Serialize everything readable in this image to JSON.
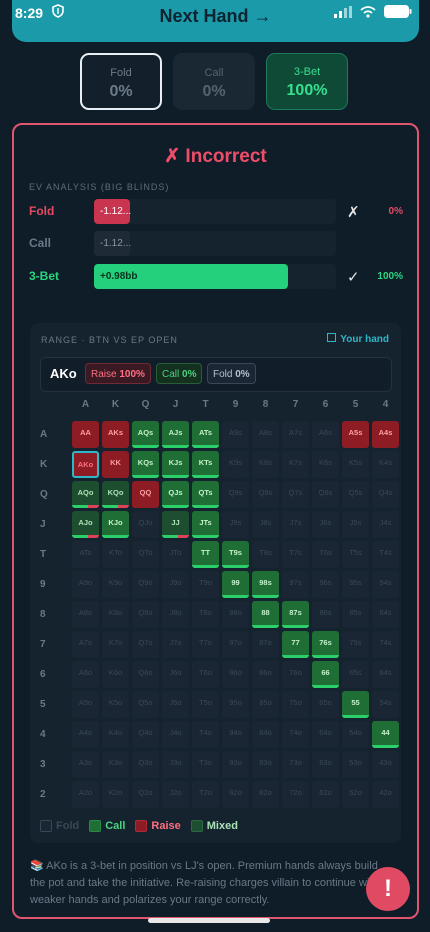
{
  "status": {
    "time": "8:29"
  },
  "header": {
    "title": "Next Hand →"
  },
  "options": [
    {
      "label": "Fold",
      "pct": "0%"
    },
    {
      "label": "Call",
      "pct": "0%"
    },
    {
      "label": "3-Bet",
      "pct": "100%"
    }
  ],
  "result": {
    "verdict": "✗ Incorrect"
  },
  "ev": {
    "heading": "EV ANALYSIS (BIG BLINDS)",
    "rows": [
      {
        "name": "Fold",
        "value": "-1.12...",
        "mark": "✗",
        "pct": "0%",
        "color": "#e44b63",
        "fill_color": "#c9354f",
        "fill": 0.15
      },
      {
        "name": "Call",
        "value": "-1.12...",
        "mark": "",
        "pct": "",
        "color": "#6b7986",
        "fill_color": "#1e2b37",
        "fill": 0.15
      },
      {
        "name": "3-Bet",
        "value": "+0.98bb",
        "mark": "✓",
        "pct": "100%",
        "color": "#2ad57f",
        "fill_color": "#24d07c",
        "fill": 0.8
      }
    ]
  },
  "range": {
    "title": "RANGE · BTN VS EP OPEN",
    "your_hand_label": "Your hand",
    "hand": "AKo",
    "pills": [
      {
        "label": "Raise",
        "value": "100%"
      },
      {
        "label": "Call",
        "value": "0%"
      },
      {
        "label": "Fold",
        "value": "0%"
      }
    ],
    "ranks": [
      "A",
      "K",
      "Q",
      "J",
      "T",
      "9",
      "8",
      "7",
      "6",
      "5",
      "4"
    ],
    "row_ranks": [
      "A",
      "K",
      "Q",
      "J",
      "T",
      "9",
      "8",
      "7",
      "6",
      "5",
      "4",
      "3",
      "2"
    ],
    "cells": [
      [
        "AA",
        "r"
      ],
      [
        "AKs",
        "r"
      ],
      [
        "AQs",
        "c"
      ],
      [
        "AJs",
        "c"
      ],
      [
        "ATs",
        "c"
      ],
      [
        "A9s",
        "f"
      ],
      [
        "A8s",
        "f"
      ],
      [
        "A7s",
        "f"
      ],
      [
        "A6s",
        "f"
      ],
      [
        "A5s",
        "r"
      ],
      [
        "A4s",
        "r"
      ],
      [
        "AKo",
        "sel"
      ],
      [
        "KK",
        "r"
      ],
      [
        "KQs",
        "c"
      ],
      [
        "KJs",
        "c"
      ],
      [
        "KTs",
        "c"
      ],
      [
        "K9s",
        "f"
      ],
      [
        "K8s",
        "f"
      ],
      [
        "K7s",
        "f"
      ],
      [
        "K6s",
        "f"
      ],
      [
        "K5s",
        "f"
      ],
      [
        "K4s",
        "f"
      ],
      [
        "AQo",
        "m"
      ],
      [
        "KQo",
        "m"
      ],
      [
        "QQ",
        "r"
      ],
      [
        "QJs",
        "c"
      ],
      [
        "QTs",
        "c"
      ],
      [
        "Q9s",
        "f"
      ],
      [
        "Q8s",
        "f"
      ],
      [
        "Q7s",
        "f"
      ],
      [
        "Q6s",
        "f"
      ],
      [
        "Q5s",
        "f"
      ],
      [
        "Q4s",
        "f"
      ],
      [
        "AJo",
        "m"
      ],
      [
        "KJo",
        "c"
      ],
      [
        "QJo",
        "f"
      ],
      [
        "JJ",
        "m"
      ],
      [
        "JTs",
        "c"
      ],
      [
        "J9s",
        "f"
      ],
      [
        "J8s",
        "f"
      ],
      [
        "J7s",
        "f"
      ],
      [
        "J6s",
        "f"
      ],
      [
        "J5s",
        "f"
      ],
      [
        "J4s",
        "f"
      ],
      [
        "ATo",
        "f"
      ],
      [
        "KTo",
        "f"
      ],
      [
        "QTo",
        "f"
      ],
      [
        "JTo",
        "f"
      ],
      [
        "TT",
        "c"
      ],
      [
        "T9s",
        "c"
      ],
      [
        "T8s",
        "f"
      ],
      [
        "T7s",
        "f"
      ],
      [
        "T6s",
        "f"
      ],
      [
        "T5s",
        "f"
      ],
      [
        "T4s",
        "f"
      ],
      [
        "A9o",
        "f"
      ],
      [
        "K9o",
        "f"
      ],
      [
        "Q9o",
        "f"
      ],
      [
        "J9o",
        "f"
      ],
      [
        "T9o",
        "f"
      ],
      [
        "99",
        "c"
      ],
      [
        "98s",
        "c"
      ],
      [
        "97s",
        "f"
      ],
      [
        "96s",
        "f"
      ],
      [
        "95s",
        "f"
      ],
      [
        "94s",
        "f"
      ],
      [
        "A8o",
        "f"
      ],
      [
        "K8o",
        "f"
      ],
      [
        "Q8o",
        "f"
      ],
      [
        "J8o",
        "f"
      ],
      [
        "T8o",
        "f"
      ],
      [
        "98o",
        "f"
      ],
      [
        "88",
        "c"
      ],
      [
        "87s",
        "c"
      ],
      [
        "86s",
        "f"
      ],
      [
        "85s",
        "f"
      ],
      [
        "84s",
        "f"
      ],
      [
        "A7o",
        "f"
      ],
      [
        "K7o",
        "f"
      ],
      [
        "Q7o",
        "f"
      ],
      [
        "J7o",
        "f"
      ],
      [
        "T7o",
        "f"
      ],
      [
        "97o",
        "f"
      ],
      [
        "87o",
        "f"
      ],
      [
        "77",
        "c"
      ],
      [
        "76s",
        "c"
      ],
      [
        "75s",
        "f"
      ],
      [
        "74s",
        "f"
      ],
      [
        "A6o",
        "f"
      ],
      [
        "K6o",
        "f"
      ],
      [
        "Q6o",
        "f"
      ],
      [
        "J6o",
        "f"
      ],
      [
        "T6o",
        "f"
      ],
      [
        "96o",
        "f"
      ],
      [
        "86o",
        "f"
      ],
      [
        "76o",
        "f"
      ],
      [
        "66",
        "c"
      ],
      [
        "65s",
        "f"
      ],
      [
        "64s",
        "f"
      ],
      [
        "A5o",
        "f"
      ],
      [
        "K5o",
        "f"
      ],
      [
        "Q5o",
        "f"
      ],
      [
        "J5o",
        "f"
      ],
      [
        "T5o",
        "f"
      ],
      [
        "95o",
        "f"
      ],
      [
        "85o",
        "f"
      ],
      [
        "75o",
        "f"
      ],
      [
        "65o",
        "f"
      ],
      [
        "55",
        "c"
      ],
      [
        "54s",
        "f"
      ],
      [
        "A4o",
        "f"
      ],
      [
        "K4o",
        "f"
      ],
      [
        "Q4o",
        "f"
      ],
      [
        "J4o",
        "f"
      ],
      [
        "T4o",
        "f"
      ],
      [
        "94o",
        "f"
      ],
      [
        "84o",
        "f"
      ],
      [
        "74o",
        "f"
      ],
      [
        "64o",
        "f"
      ],
      [
        "54o",
        "f"
      ],
      [
        "44",
        "c"
      ],
      [
        "A3o",
        "f"
      ],
      [
        "K3o",
        "f"
      ],
      [
        "Q3o",
        "f"
      ],
      [
        "J3o",
        "f"
      ],
      [
        "T3o",
        "f"
      ],
      [
        "93o",
        "f"
      ],
      [
        "83o",
        "f"
      ],
      [
        "73o",
        "f"
      ],
      [
        "63o",
        "f"
      ],
      [
        "53o",
        "f"
      ],
      [
        "43o",
        "f"
      ],
      [
        "A2o",
        "f"
      ],
      [
        "K2o",
        "f"
      ],
      [
        "Q2o",
        "f"
      ],
      [
        "J2o",
        "f"
      ],
      [
        "T2o",
        "f"
      ],
      [
        "92o",
        "f"
      ],
      [
        "82o",
        "f"
      ],
      [
        "72o",
        "f"
      ],
      [
        "62o",
        "f"
      ],
      [
        "52o",
        "f"
      ],
      [
        "42o",
        "f"
      ]
    ],
    "legend": [
      "Fold",
      "Call",
      "Raise",
      "Mixed"
    ]
  },
  "explanation": "AKo is a 3-bet in position vs LJ's open. Premium hands always build the pot and take the initiative. Re-raising charges villain to continue with weaker hands and polarizes your range correctly.",
  "explanation_icon": "books-icon",
  "fab_label": "!",
  "colors": {
    "accent": "#1b9aaa",
    "raise": "#8e1c24",
    "call": "#1f6e35",
    "mixed": "#1d4e30",
    "error": "#e04a63"
  }
}
